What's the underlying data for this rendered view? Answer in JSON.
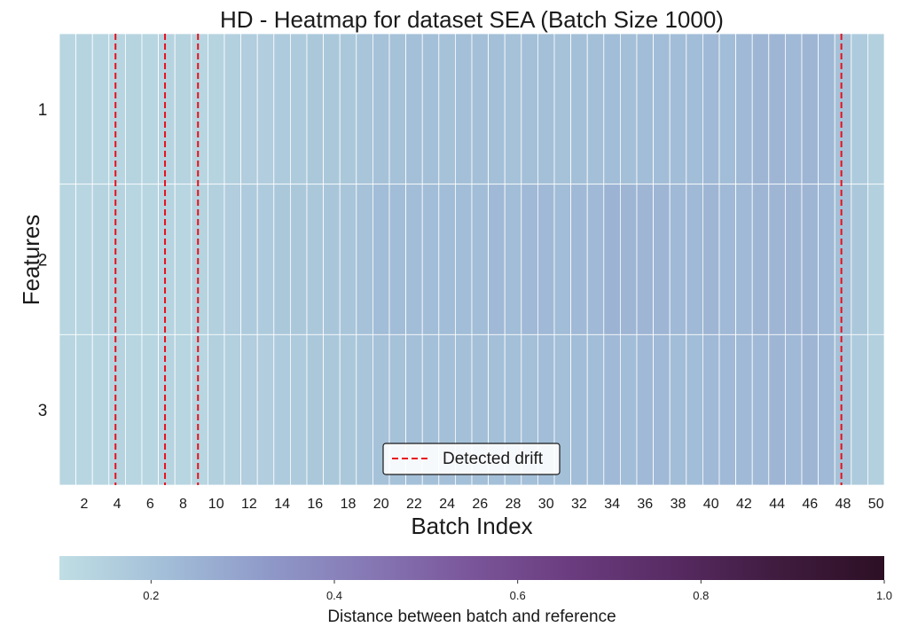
{
  "chart_data": {
    "type": "heatmap",
    "title": "HD - Heatmap for dataset SEA (Batch Size 1000)",
    "xlabel": "Batch Index",
    "ylabel": "Features",
    "x": [
      1,
      2,
      3,
      4,
      5,
      6,
      7,
      8,
      9,
      10,
      11,
      12,
      13,
      14,
      15,
      16,
      17,
      18,
      19,
      20,
      21,
      22,
      23,
      24,
      25,
      26,
      27,
      28,
      29,
      30,
      31,
      32,
      33,
      34,
      35,
      36,
      37,
      38,
      39,
      40,
      41,
      42,
      43,
      44,
      45,
      46,
      47,
      48,
      49,
      50
    ],
    "x_tick_labels": [
      "2",
      "4",
      "6",
      "8",
      "10",
      "12",
      "14",
      "16",
      "18",
      "20",
      "22",
      "24",
      "26",
      "28",
      "30",
      "32",
      "34",
      "36",
      "38",
      "40",
      "42",
      "44",
      "46",
      "48",
      "50"
    ],
    "y_tick_labels": [
      "1",
      "2",
      "3"
    ],
    "rows": [
      {
        "feature": "1",
        "values": [
          0.13,
          0.14,
          0.13,
          0.13,
          0.14,
          0.13,
          0.14,
          0.14,
          0.13,
          0.14,
          0.15,
          0.16,
          0.16,
          0.17,
          0.17,
          0.18,
          0.18,
          0.18,
          0.19,
          0.2,
          0.2,
          0.21,
          0.21,
          0.2,
          0.21,
          0.21,
          0.21,
          0.2,
          0.21,
          0.21,
          0.2,
          0.21,
          0.21,
          0.22,
          0.21,
          0.22,
          0.22,
          0.22,
          0.22,
          0.23,
          0.22,
          0.23,
          0.24,
          0.24,
          0.23,
          0.24,
          0.23,
          0.2,
          0.17,
          0.15
        ]
      },
      {
        "feature": "2",
        "values": [
          0.13,
          0.13,
          0.14,
          0.14,
          0.13,
          0.13,
          0.14,
          0.13,
          0.14,
          0.15,
          0.16,
          0.17,
          0.17,
          0.18,
          0.18,
          0.18,
          0.19,
          0.19,
          0.2,
          0.22,
          0.22,
          0.22,
          0.22,
          0.22,
          0.22,
          0.22,
          0.23,
          0.22,
          0.23,
          0.23,
          0.22,
          0.23,
          0.23,
          0.25,
          0.24,
          0.24,
          0.24,
          0.23,
          0.23,
          0.24,
          0.23,
          0.23,
          0.24,
          0.24,
          0.24,
          0.24,
          0.23,
          0.21,
          0.18,
          0.15
        ]
      },
      {
        "feature": "3",
        "values": [
          0.13,
          0.13,
          0.13,
          0.14,
          0.13,
          0.13,
          0.14,
          0.13,
          0.13,
          0.15,
          0.15,
          0.16,
          0.16,
          0.17,
          0.17,
          0.18,
          0.18,
          0.18,
          0.19,
          0.2,
          0.2,
          0.21,
          0.21,
          0.21,
          0.21,
          0.21,
          0.21,
          0.21,
          0.21,
          0.22,
          0.21,
          0.22,
          0.22,
          0.23,
          0.22,
          0.23,
          0.23,
          0.22,
          0.22,
          0.23,
          0.23,
          0.23,
          0.23,
          0.24,
          0.23,
          0.24,
          0.23,
          0.2,
          0.17,
          0.15
        ]
      }
    ],
    "drift_batches": [
      4.4,
      7.4,
      9.4,
      48.4
    ],
    "drift_color": "#e8101a",
    "legend": {
      "label": "Detected drift",
      "position": "lower-center"
    },
    "colorbar": {
      "label": "Distance between batch and reference",
      "range": [
        0.1,
        1.0
      ],
      "ticks": [
        "0.2",
        "0.4",
        "0.6",
        "0.8",
        "1.0"
      ],
      "tick_values": [
        0.2,
        0.4,
        0.6,
        0.8,
        1.0
      ],
      "colors": [
        "#c0dee4",
        "#a3bfd8",
        "#8f9ac9",
        "#8678b4",
        "#7a5599",
        "#6a3b7e",
        "#562a61",
        "#3f1b3e",
        "#2c0f24"
      ]
    },
    "grid": false
  }
}
